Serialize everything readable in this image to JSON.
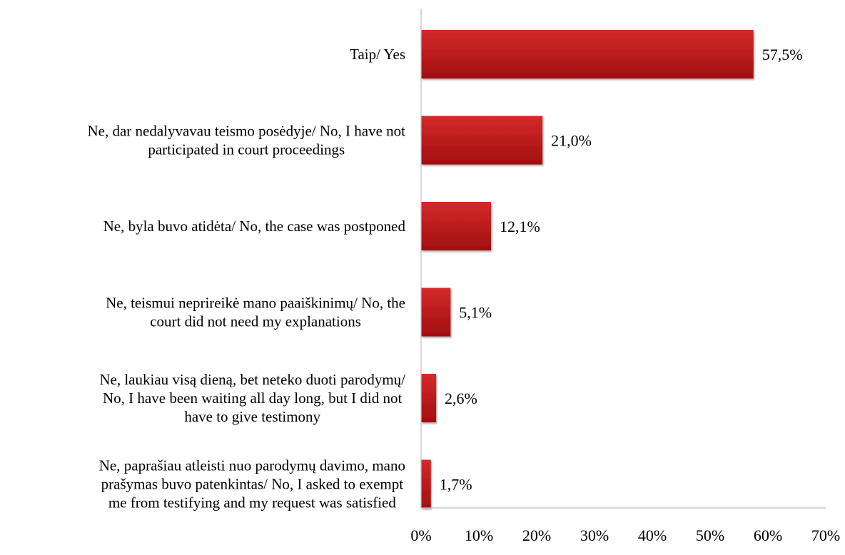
{
  "chart_data": {
    "type": "bar",
    "orientation": "horizontal",
    "categories": [
      [
        "Taip/ Yes"
      ],
      [
        "Ne, dar nedalyvavau teismo posėdyje/ No, I have not",
        "participated in court proceedings"
      ],
      [
        "Ne, byla buvo atidėta/ No, the case was postponed"
      ],
      [
        "Ne, teismui neprireikė mano paaiškinimų/ No, the",
        "court did not need my explanations"
      ],
      [
        "Ne, laukiau visą dieną, bet neteko duoti parodymų/",
        "No, I have been waiting all day long, but I did not",
        "have to give testimony"
      ],
      [
        "Ne, paprašiau atleisti nuo parodymų davimo, mano",
        "prašymas buvo patenkintas/ No, I asked to exempt",
        "me from testifying and my request was satisfied"
      ]
    ],
    "values": [
      57.5,
      21.0,
      12.1,
      5.1,
      2.6,
      1.7
    ],
    "value_labels": [
      "57,5%",
      "21,0%",
      "12,1%",
      "5,1%",
      "2,6%",
      "1,7%"
    ],
    "xlim": [
      0,
      70
    ],
    "x_ticks": [
      0,
      10,
      20,
      30,
      40,
      50,
      60,
      70
    ],
    "x_tick_labels": [
      "0%",
      "10%",
      "20%",
      "30%",
      "40%",
      "50%",
      "60%",
      "70%"
    ],
    "title": "",
    "xlabel": "",
    "ylabel": "",
    "grid": false,
    "legend": "none",
    "colors": {
      "bar_light": "#d42a2a",
      "bar_dark": "#a10f10",
      "axis": "#bfbfbf"
    }
  }
}
